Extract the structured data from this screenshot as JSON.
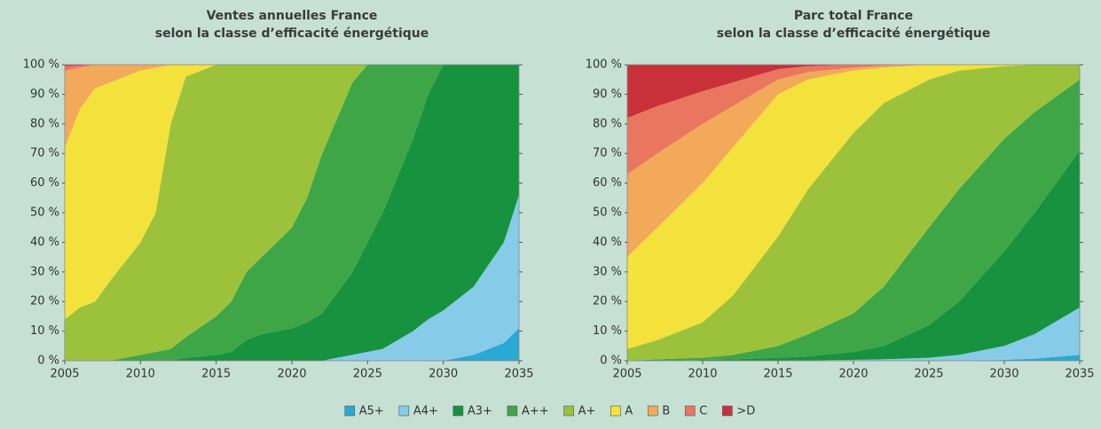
{
  "chart_data": [
    {
      "type": "stacked_area",
      "title": [
        "Ventes annuelles France",
        "selon la classe d’efficacité énergétique"
      ],
      "x": [
        2005,
        2006,
        2007,
        2008,
        2010,
        2011,
        2012,
        2013,
        2015,
        2016,
        2017,
        2018,
        2020,
        2021,
        2022,
        2024,
        2025,
        2026,
        2028,
        2029,
        2030,
        2032,
        2034,
        2035
      ],
      "xlim": [
        2005,
        2035
      ],
      "xticks": [
        2005,
        2010,
        2015,
        2020,
        2025,
        2030,
        2035
      ],
      "ylim": [
        0,
        100
      ],
      "yticks": [
        {
          "value": 0,
          "label": "0 %"
        },
        {
          "value": 10,
          "label": "10 %"
        },
        {
          "value": 20,
          "label": "20 %"
        },
        {
          "value": 30,
          "label": "30 %"
        },
        {
          "value": 40,
          "label": "40 %"
        },
        {
          "value": 50,
          "label": "50 %"
        },
        {
          "value": 60,
          "label": "60 %"
        },
        {
          "value": 70,
          "label": "70 %"
        },
        {
          "value": 80,
          "label": "80 %"
        },
        {
          "value": 90,
          "label": "90 %"
        },
        {
          "value": 100,
          "label": "100 %"
        }
      ],
      "series": [
        {
          "name": "A5+",
          "color": "#29a9d3",
          "values": [
            0,
            0,
            0,
            0,
            0,
            0,
            0,
            0,
            0,
            0,
            0,
            0,
            0,
            0,
            0,
            0,
            0,
            0,
            0,
            0,
            0,
            2,
            6,
            11
          ]
        },
        {
          "name": "A4+",
          "color": "#86cbe8",
          "values": [
            0,
            0,
            0,
            0,
            0,
            0,
            0,
            0,
            0,
            0,
            0,
            0,
            0,
            0,
            0,
            2,
            3,
            4,
            10,
            14,
            17,
            23,
            34,
            45
          ]
        },
        {
          "name": "A3+",
          "color": "#17923f",
          "values": [
            0,
            0,
            0,
            0,
            0,
            0,
            0,
            1,
            2,
            3,
            7,
            9,
            11,
            13,
            16,
            28,
            37,
            46,
            65,
            76,
            83,
            75,
            60,
            44
          ]
        },
        {
          "name": "A++",
          "color": "#3ea647",
          "values": [
            0,
            0,
            0,
            0,
            2,
            3,
            4,
            7,
            13,
            17,
            23,
            26,
            34,
            42,
            54,
            64,
            60,
            50,
            25,
            10,
            0,
            0,
            0,
            0
          ]
        },
        {
          "name": "A+",
          "color": "#9cc23c",
          "values": [
            14,
            18,
            20,
            27,
            38,
            47,
            76,
            88,
            85,
            80,
            70,
            65,
            55,
            45,
            30,
            6,
            0,
            0,
            0,
            0,
            0,
            0,
            0,
            0
          ]
        },
        {
          "name": "A",
          "color": "#f4e23c",
          "values": [
            58,
            67,
            72,
            67,
            58,
            49,
            20,
            4,
            0,
            0,
            0,
            0,
            0,
            0,
            0,
            0,
            0,
            0,
            0,
            0,
            0,
            0,
            0,
            0
          ]
        },
        {
          "name": "B",
          "color": "#f2a95a",
          "values": [
            26,
            14,
            8,
            6,
            2,
            1,
            0,
            0,
            0,
            0,
            0,
            0,
            0,
            0,
            0,
            0,
            0,
            0,
            0,
            0,
            0,
            0,
            0,
            0
          ]
        },
        {
          "name": "C",
          "color": "#e97760",
          "values": [
            1.5,
            0.7,
            0,
            0,
            0,
            0,
            0,
            0,
            0,
            0,
            0,
            0,
            0,
            0,
            0,
            0,
            0,
            0,
            0,
            0,
            0,
            0,
            0,
            0
          ]
        },
        {
          "name": ">D",
          "color": "#c8313a",
          "values": [
            0.5,
            0.3,
            0,
            0,
            0,
            0,
            0,
            0,
            0,
            0,
            0,
            0,
            0,
            0,
            0,
            0,
            0,
            0,
            0,
            0,
            0,
            0,
            0,
            0
          ]
        }
      ]
    },
    {
      "type": "stacked_area",
      "title": [
        "Parc total France",
        "selon la classe d’efficacité énergétique"
      ],
      "x": [
        2005,
        2007,
        2010,
        2012,
        2015,
        2017,
        2020,
        2022,
        2025,
        2027,
        2030,
        2032,
        2035
      ],
      "xlim": [
        2005,
        2035
      ],
      "xticks": [
        2005,
        2010,
        2015,
        2020,
        2025,
        2030,
        2035
      ],
      "ylim": [
        0,
        100
      ],
      "yticks": [
        {
          "value": 0,
          "label": "0 %"
        },
        {
          "value": 10,
          "label": "10 %"
        },
        {
          "value": 20,
          "label": "20 %"
        },
        {
          "value": 30,
          "label": "30 %"
        },
        {
          "value": 40,
          "label": "40 %"
        },
        {
          "value": 50,
          "label": "50 %"
        },
        {
          "value": 60,
          "label": "60 %"
        },
        {
          "value": 70,
          "label": "70 %"
        },
        {
          "value": 80,
          "label": "80 %"
        },
        {
          "value": 90,
          "label": "90 %"
        },
        {
          "value": 100,
          "label": "100 %"
        }
      ],
      "series": [
        {
          "name": "A5+",
          "color": "#29a9d3",
          "values": [
            0,
            0,
            0,
            0,
            0,
            0,
            0,
            0,
            0,
            0,
            0.3,
            0.7,
            2
          ]
        },
        {
          "name": "A4+",
          "color": "#86cbe8",
          "values": [
            0,
            0,
            0,
            0,
            0,
            0.1,
            0.3,
            0.5,
            1,
            2,
            4.7,
            8.3,
            16
          ]
        },
        {
          "name": "A3+",
          "color": "#17923f",
          "values": [
            0,
            0,
            0.3,
            0.5,
            1,
            1.4,
            2.7,
            4.5,
            11,
            18,
            32,
            41,
            53
          ]
        },
        {
          "name": "A++",
          "color": "#3ea647",
          "values": [
            0,
            0.5,
            0.7,
            1.5,
            4,
            7.5,
            13,
            20,
            33,
            38,
            38,
            34,
            24
          ]
        },
        {
          "name": "A+",
          "color": "#9cc23c",
          "values": [
            4,
            6.5,
            12,
            20,
            37,
            49,
            61,
            62,
            50,
            40,
            24.5,
            16,
            5
          ]
        },
        {
          "name": "A",
          "color": "#f4e23c",
          "values": [
            31,
            38,
            47,
            50,
            48,
            37,
            21,
            12,
            5,
            2,
            0.5,
            0,
            0
          ]
        },
        {
          "name": "B",
          "color": "#f2a95a",
          "values": [
            28,
            25,
            20,
            14,
            5,
            2.5,
            1,
            0.7,
            0,
            0,
            0,
            0,
            0
          ]
        },
        {
          "name": "C",
          "color": "#e97760",
          "values": [
            19,
            16,
            11,
            8,
            3.5,
            2,
            1,
            0.3,
            0,
            0,
            0,
            0,
            0
          ]
        },
        {
          "name": ">D",
          "color": "#c8313a",
          "values": [
            18,
            14,
            9,
            6,
            1.5,
            0.5,
            0,
            0,
            0,
            0,
            0,
            0,
            0
          ]
        }
      ]
    }
  ]
}
